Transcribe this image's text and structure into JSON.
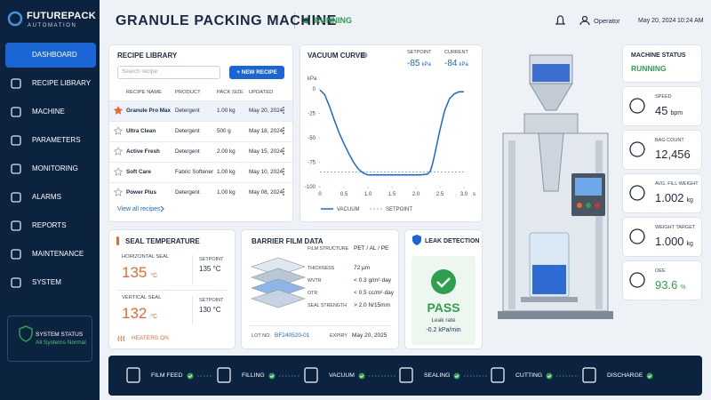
{
  "sidebar": {
    "brand": "FUTUREPACK",
    "tagline": "AUTOMATION",
    "nav": [
      "DASHBOARD",
      "RECIPE LIBRARY",
      "MACHINE",
      "PARAMETERS",
      "MONITORING",
      "ALARMS",
      "REPORTS",
      "MAINTENANCE",
      "SYSTEM"
    ],
    "status_title": "SYSTEM STATUS",
    "status_text": "All Systems Normal"
  },
  "header": {
    "title": "GRANULE PACKING MACHINE",
    "status": "RUNNING",
    "user": "Operator",
    "date": "May 20, 2024",
    "time": "10:24 AM"
  },
  "recipe_library": {
    "title": "RECIPE LIBRARY",
    "search_placeholder": "Search recipe",
    "new_button": "+ NEW RECIPE",
    "columns": [
      "RECIPE NAME",
      "PRODUCT",
      "PACK SIZE",
      "UPDATED"
    ],
    "rows": [
      [
        "Granule Pro Max",
        "Detergent",
        "1.00 kg",
        "May 20, 2024"
      ],
      [
        "Ultra Clean",
        "Detergent",
        "500 g",
        "May 18, 2024"
      ],
      [
        "Active Fresh",
        "Detergent",
        "2.00 kg",
        "May 15, 2024"
      ],
      [
        "Soft Care",
        "Fabric Softener",
        "1.00 kg",
        "May 10, 2024"
      ],
      [
        "Power Plus",
        "Detergent",
        "1.00 kg",
        "May 08, 2024"
      ]
    ],
    "view_all": "View all recipes"
  },
  "vacuum_curve": {
    "title": "VACUUM CURVE",
    "setpoint": {
      "label": "SETPOINT",
      "value": -85,
      "unit": "kPa"
    },
    "current": {
      "label": "CURRENT",
      "value": -84,
      "unit": "kPa"
    },
    "y_label": "kPa",
    "x_label": "s",
    "x": [
      0,
      0.1,
      0.2,
      0.3,
      0.4,
      0.5,
      0.6,
      0.7,
      0.8,
      0.9,
      1.0,
      1.2,
      1.5,
      1.8,
      2.1,
      2.25,
      2.3,
      2.35,
      2.4,
      2.5,
      2.6,
      2.7,
      2.8,
      2.9,
      3.0
    ],
    "values": [
      -1,
      -6,
      -18,
      -32,
      -45,
      -56,
      -66,
      -75,
      -82,
      -86,
      -88,
      -88,
      -88,
      -88,
      -88,
      -87,
      -84,
      -76,
      -65,
      -42,
      -22,
      -10,
      -5,
      -3,
      -3
    ],
    "xlim": [
      0,
      3
    ],
    "ylim": [
      -100,
      0
    ],
    "xticks": [
      0,
      0.5,
      {
        "value": 1,
        "label": "1.0"
      },
      1.5,
      {
        "value": 2,
        "label": "2.0"
      },
      2.5,
      {
        "value": 3,
        "label": "3.0"
      }
    ],
    "yticks": [
      0,
      -25,
      -50,
      -75,
      -100
    ],
    "legend": [
      "VACUUM",
      "SETPOINT"
    ],
    "color": "#1a66d6",
    "setpoint_color": "#7fb0ea"
  },
  "machine_status": {
    "title": "MACHINE STATUS",
    "state": "RUNNING",
    "metrics": [
      {
        "label": "SPEED",
        "value": "45",
        "unit": "bpm"
      },
      {
        "label": "BAG COUNT",
        "value": "12,456"
      },
      {
        "label": "AVG. FILL WEIGHT",
        "value": "1.002",
        "unit": "kg"
      },
      {
        "label": "WEIGHT TARGET",
        "value": "1.000",
        "unit": "kg"
      },
      {
        "label": "OEE",
        "value": "93.6",
        "unit": "%"
      }
    ]
  },
  "seal_temperature": {
    "title": "SEAL TEMPERATURE",
    "seals": [
      {
        "label": "HORIZONTAL SEAL",
        "value": "135",
        "unit": "°C",
        "setpoint_label": "SETPOINT",
        "setpoint": "135 °C"
      },
      {
        "label": "VERTICAL SEAL",
        "value": "132",
        "unit": "°C",
        "setpoint_label": "SETPOINT",
        "setpoint": "130 °C"
      }
    ],
    "heaters": "HEATERS ON"
  },
  "barrier_film": {
    "title": "BARRIER FILM DATA",
    "rows": [
      [
        "FILM STRUCTURE",
        "PET / AL / PE"
      ],
      [
        "THICKNESS",
        "72 µm"
      ],
      [
        "WVTR",
        "< 0.3 g/m²·day"
      ],
      [
        "OTR",
        "< 0.5 cc/m²·day"
      ],
      [
        "SEAL STRENGTH",
        "> 2.0 N/15mm"
      ]
    ],
    "lot_label": "LOT NO.",
    "lot": "BF240520-01",
    "expiry_label": "EXPIRY",
    "expiry": "May 20, 2025"
  },
  "leak_detection": {
    "title": "LEAK DETECTION",
    "result": "PASS",
    "rate_label": "Leak rate",
    "rate": "-0.2 kPa/min"
  },
  "process_flow": {
    "steps": [
      "FILM FEED",
      "FILLING",
      "VACUUM",
      "SEALING",
      "CUTTING",
      "DISCHARGE"
    ]
  }
}
